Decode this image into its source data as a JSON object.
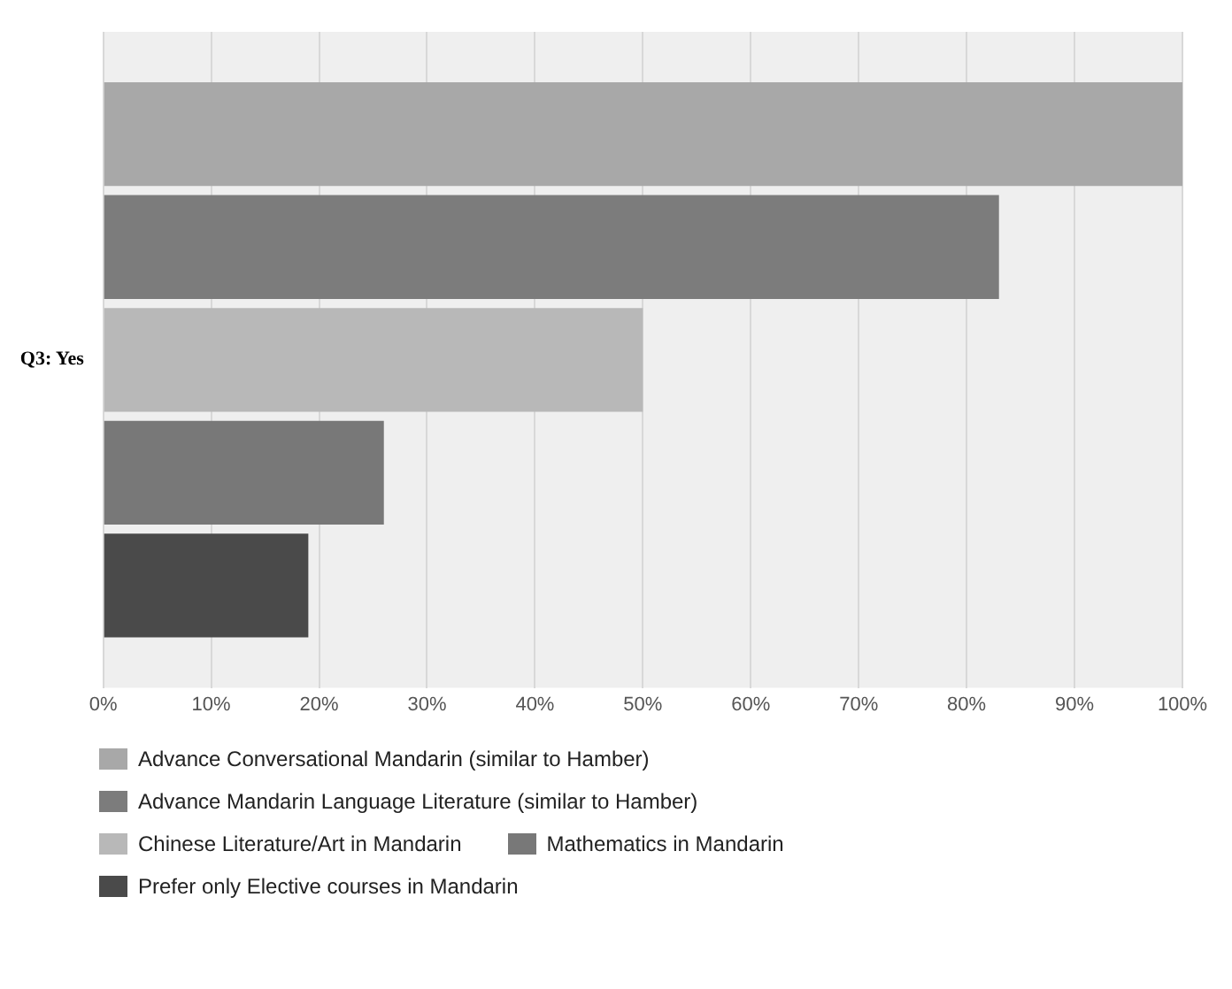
{
  "chart_data": {
    "type": "bar",
    "orientation": "horizontal",
    "categories": [
      "Q3: Yes"
    ],
    "series": [
      {
        "name": "Advance Conversational Mandarin (similar to Hamber)",
        "color": "#a8a8a8",
        "values": [
          100
        ]
      },
      {
        "name": "Advance Mandarin Language Literature (similar to Hamber)",
        "color": "#7c7c7c",
        "values": [
          83
        ]
      },
      {
        "name": "Chinese Literature/Art in Mandarin",
        "color": "#b8b8b8",
        "values": [
          50
        ]
      },
      {
        "name": "Mathematics in Mandarin",
        "color": "#787878",
        "values": [
          26
        ]
      },
      {
        "name": "Prefer only Elective courses in Mandarin",
        "color": "#4a4a4a",
        "values": [
          19
        ]
      }
    ],
    "xlim": [
      0,
      100
    ],
    "xticks": [
      {
        "value": 0,
        "label": "0%"
      },
      {
        "value": 10,
        "label": "10%"
      },
      {
        "value": 20,
        "label": "20%"
      },
      {
        "value": 30,
        "label": "30%"
      },
      {
        "value": 40,
        "label": "40%"
      },
      {
        "value": 50,
        "label": "50%"
      },
      {
        "value": 60,
        "label": "60%"
      },
      {
        "value": 70,
        "label": "70%"
      },
      {
        "value": 80,
        "label": "80%"
      },
      {
        "value": 90,
        "label": "90%"
      },
      {
        "value": 100,
        "label": "100%"
      }
    ],
    "grid": "x",
    "legend": "bottom"
  }
}
